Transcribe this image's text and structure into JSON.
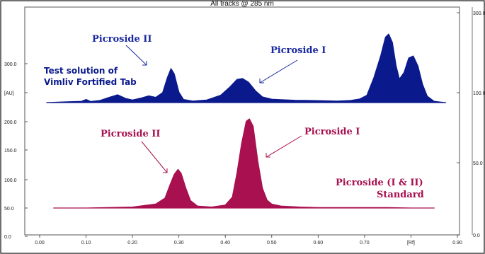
{
  "chart_data": {
    "type": "area",
    "title": "All tracks @ 285 nm",
    "xlabel": "[Rf]",
    "ylabel": "[AU]",
    "xlim": [
      0.0,
      0.9
    ],
    "x_ticks": [
      "0.00",
      "0.10",
      "0.20",
      "0.30",
      "0.40",
      "0.50",
      "0.60",
      "0.70",
      "[Rf]",
      "0.90"
    ],
    "y_left_ticks": [
      "0.0",
      "50.0",
      "100.0",
      "150.0",
      "200.0",
      "[AU]",
      "300.0"
    ],
    "y_right_ticks": [
      "0.0",
      "50.0",
      "100.0",
      "300.0"
    ],
    "grid": false,
    "series": [
      {
        "name": "",
        "color": "#0a1a8c",
        "x": [
          0.015,
          0.03,
          0.06,
          0.09,
          0.1,
          0.11,
          0.13,
          0.15,
          0.168,
          0.185,
          0.2,
          0.22,
          0.235,
          0.25,
          0.265,
          0.275,
          0.283,
          0.29,
          0.3,
          0.31,
          0.33,
          0.36,
          0.39,
          0.41,
          0.425,
          0.437,
          0.45,
          0.465,
          0.48,
          0.5,
          0.52,
          0.55,
          0.58,
          0.61,
          0.64,
          0.67,
          0.69,
          0.705,
          0.72,
          0.735,
          0.745,
          0.752,
          0.76,
          0.768,
          0.775,
          0.785,
          0.795,
          0.805,
          0.815,
          0.825,
          0.835,
          0.85,
          0.865,
          0.875
        ],
        "values": [
          0,
          1,
          3,
          5,
          12,
          4,
          8,
          20,
          30,
          16,
          10,
          18,
          26,
          20,
          38,
          95,
          130,
          110,
          40,
          12,
          6,
          10,
          28,
          60,
          88,
          92,
          78,
          45,
          22,
          13,
          11,
          9,
          8,
          7,
          6,
          8,
          14,
          28,
          95,
          180,
          250,
          262,
          230,
          140,
          90,
          115,
          170,
          178,
          140,
          70,
          25,
          5,
          2,
          0
        ]
      },
      {
        "name": "",
        "color": "#a8104f",
        "x": [
          0.03,
          0.1,
          0.2,
          0.25,
          0.27,
          0.28,
          0.29,
          0.298,
          0.305,
          0.315,
          0.325,
          0.34,
          0.37,
          0.4,
          0.415,
          0.425,
          0.435,
          0.445,
          0.452,
          0.46,
          0.47,
          0.48,
          0.49,
          0.5,
          0.52,
          0.56,
          0.6,
          0.65,
          0.7,
          0.75,
          0.8,
          0.85
        ],
        "values": [
          0,
          0,
          2,
          8,
          20,
          45,
          68,
          78,
          70,
          40,
          15,
          4,
          2,
          6,
          22,
          70,
          130,
          175,
          180,
          165,
          95,
          40,
          16,
          8,
          4,
          2,
          1,
          1,
          1,
          1,
          0,
          0
        ]
      }
    ],
    "annotations": [
      {
        "text": "Picroside II"
      },
      {
        "text": "Picroside I"
      },
      {
        "text": "Test solution of"
      },
      {
        "text": "Vimliv Fortified Tab"
      },
      {
        "text": "Picroside II"
      },
      {
        "text": "Picroside I"
      },
      {
        "text": "Picroside (I & II)"
      },
      {
        "text": "Standard"
      }
    ]
  }
}
